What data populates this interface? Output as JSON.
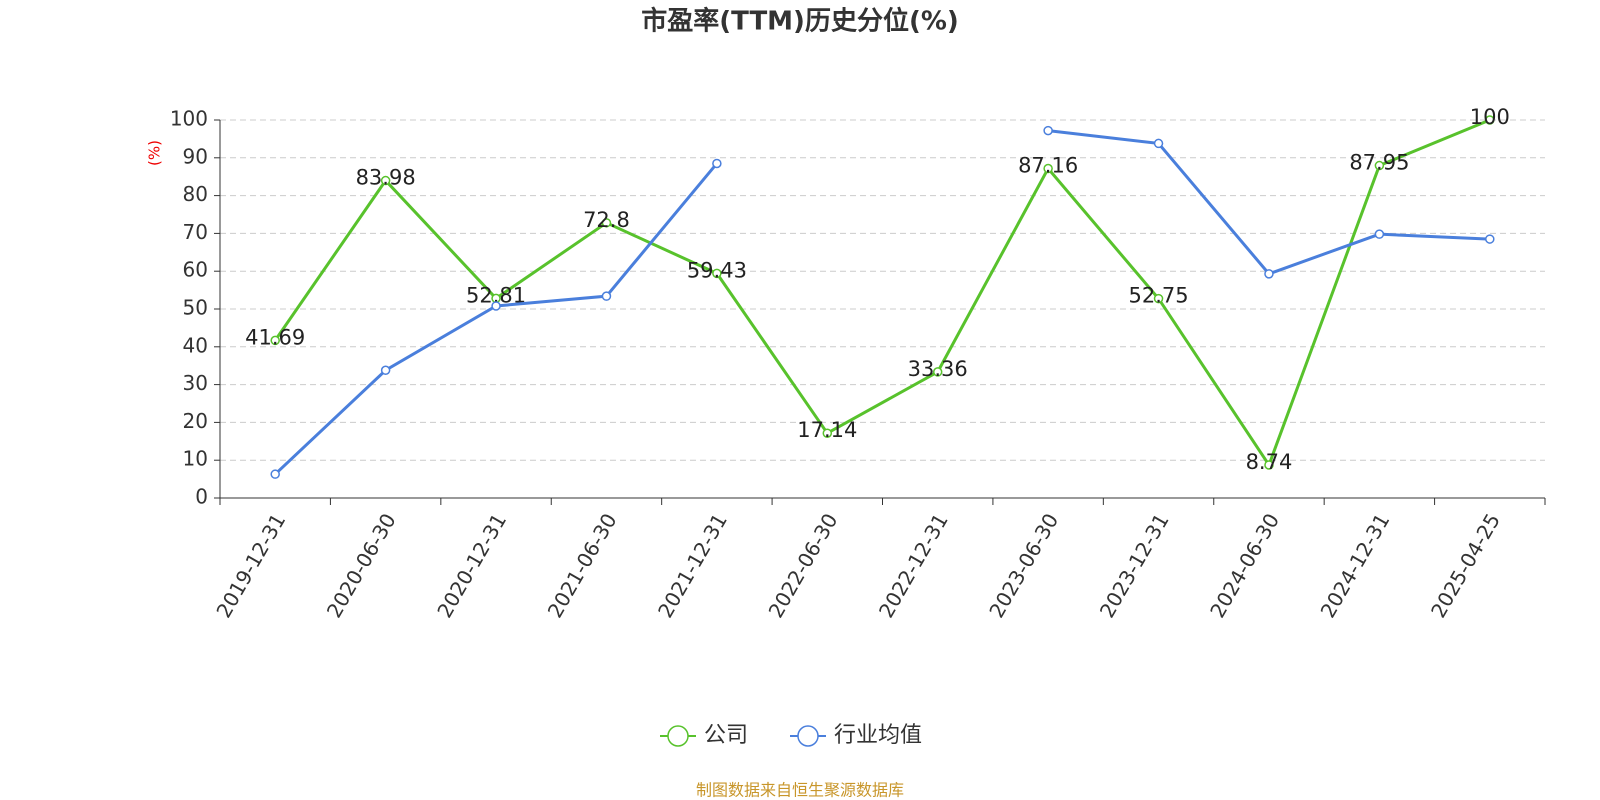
{
  "chart_data": {
    "type": "line",
    "title": "市盈率(TTM)历史分位(%)",
    "y_label": "(%)",
    "categories": [
      "2019-12-31",
      "2020-06-30",
      "2020-12-31",
      "2021-06-30",
      "2021-12-31",
      "2022-06-30",
      "2022-12-31",
      "2023-06-30",
      "2023-12-31",
      "2024-06-30",
      "2024-12-31",
      "2025-04-25"
    ],
    "series": [
      {
        "name": "公司",
        "color": "#58c22c",
        "values": [
          41.69,
          83.98,
          52.81,
          72.8,
          59.43,
          17.14,
          33.36,
          87.16,
          52.75,
          8.74,
          87.95,
          100
        ]
      },
      {
        "name": "行业均值",
        "color": "#4a7fdc",
        "values": [
          6.3,
          33.8,
          50.8,
          53.4,
          88.5,
          null,
          null,
          97.2,
          93.8,
          59.3,
          69.8,
          68.5
        ]
      }
    ],
    "ylim": [
      0,
      100
    ],
    "yticks": [
      0,
      10,
      20,
      30,
      40,
      50,
      60,
      70,
      80,
      90,
      100
    ],
    "grid": true,
    "legend": "bottom",
    "source": "制图数据来自恒生聚源数据库"
  }
}
